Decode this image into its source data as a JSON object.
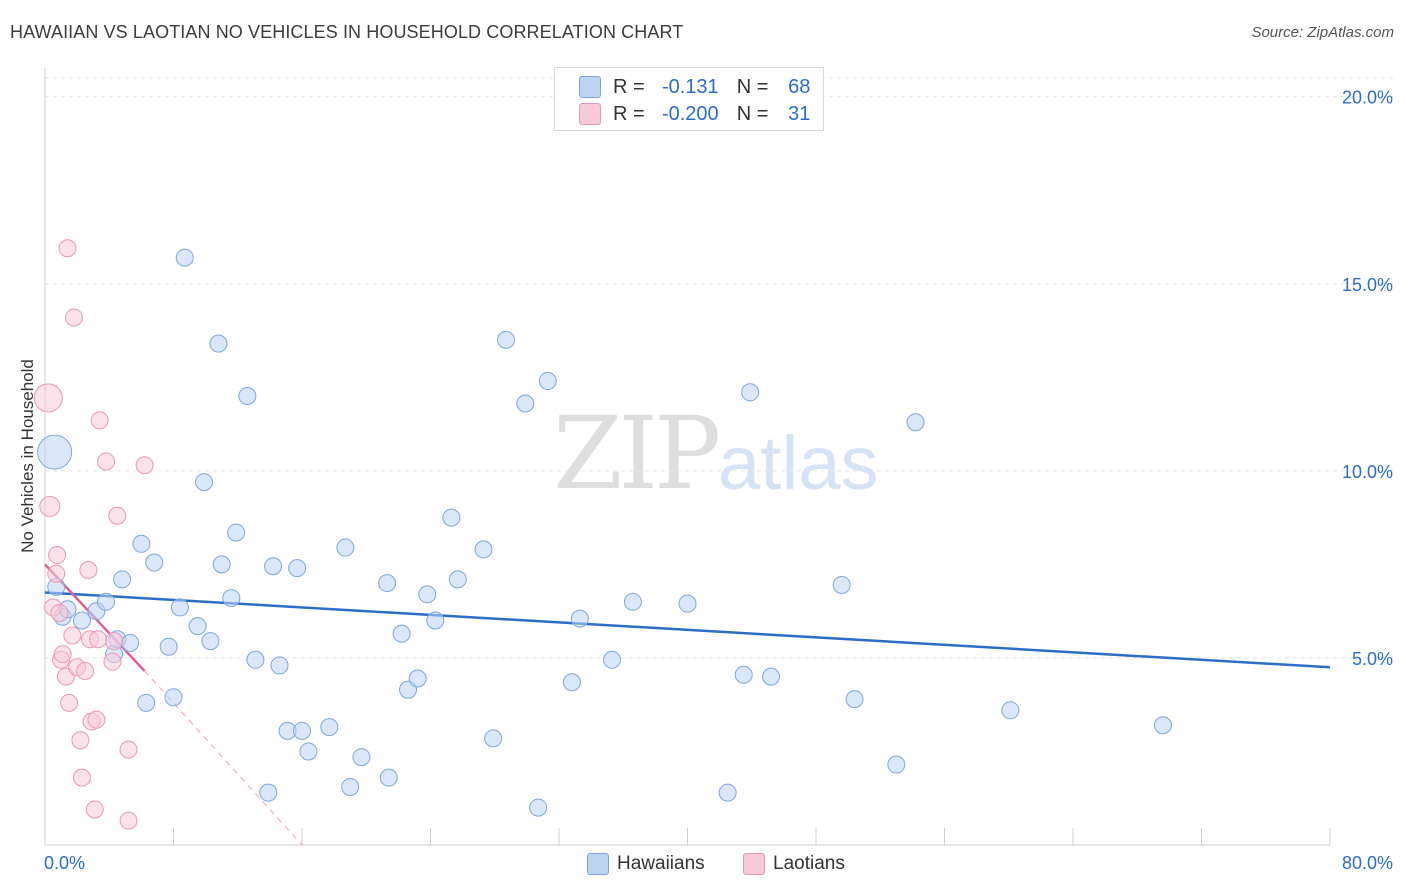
{
  "title": "HAWAIIAN VS LAOTIAN NO VEHICLES IN HOUSEHOLD CORRELATION CHART",
  "source": "Source: ZipAtlas.com",
  "watermark": {
    "zip": "ZIP",
    "atlas": "atlas"
  },
  "legend": {
    "r_label": "R =",
    "n_label": "N =",
    "rows": [
      {
        "r": "-0.131",
        "n": "68",
        "color": "#bcd3f2"
      },
      {
        "r": "-0.200",
        "n": "31",
        "color": "#f8c9d7"
      }
    ]
  },
  "bottom_legend": {
    "hawaiians": "Hawaiians",
    "laotians": "Laotians"
  },
  "chart_data": {
    "type": "scatter",
    "title": "HAWAIIAN VS LAOTIAN NO VEHICLES IN HOUSEHOLD CORRELATION CHART",
    "xlabel": "",
    "ylabel": "No Vehicles in Household",
    "xlim": [
      0,
      80
    ],
    "ylim": [
      0,
      20.5
    ],
    "x_tick_labels": [
      "0.0%",
      "80.0%"
    ],
    "y_ticks": [
      5,
      10,
      15,
      20
    ],
    "y_tick_labels": [
      "5.0%",
      "10.0%",
      "15.0%",
      "20.0%"
    ],
    "series": [
      {
        "name": "Hawaiians",
        "color": "#8fb4e6",
        "line_color": "#2c6dc7",
        "trend": {
          "x": [
            0,
            80
          ],
          "y": [
            6.75,
            4.75
          ]
        },
        "points": [
          [
            0.6,
            10.5
          ],
          [
            0.7,
            6.9
          ],
          [
            1.1,
            6.1
          ],
          [
            1.4,
            6.3
          ],
          [
            2.3,
            6.0
          ],
          [
            3.2,
            6.25
          ],
          [
            3.8,
            6.5
          ],
          [
            4.3,
            5.1
          ],
          [
            4.5,
            5.5
          ],
          [
            4.8,
            7.1
          ],
          [
            5.3,
            5.4
          ],
          [
            6.0,
            8.05
          ],
          [
            6.3,
            3.8
          ],
          [
            6.8,
            7.55
          ],
          [
            7.7,
            5.3
          ],
          [
            8.0,
            3.95
          ],
          [
            8.4,
            6.35
          ],
          [
            8.7,
            15.7
          ],
          [
            9.5,
            5.85
          ],
          [
            9.9,
            9.7
          ],
          [
            10.3,
            5.45
          ],
          [
            10.8,
            13.4
          ],
          [
            11.0,
            7.5
          ],
          [
            11.6,
            6.6
          ],
          [
            11.9,
            8.35
          ],
          [
            12.6,
            12.0
          ],
          [
            13.1,
            4.95
          ],
          [
            13.9,
            1.4
          ],
          [
            14.2,
            7.45
          ],
          [
            14.6,
            4.8
          ],
          [
            15.1,
            3.05
          ],
          [
            15.7,
            7.4
          ],
          [
            16.0,
            3.05
          ],
          [
            16.4,
            2.5
          ],
          [
            17.7,
            3.15
          ],
          [
            18.7,
            7.95
          ],
          [
            19.0,
            1.55
          ],
          [
            19.7,
            2.35
          ],
          [
            21.3,
            7.0
          ],
          [
            21.4,
            1.8
          ],
          [
            22.2,
            5.65
          ],
          [
            22.6,
            4.15
          ],
          [
            23.2,
            4.45
          ],
          [
            23.8,
            6.7
          ],
          [
            24.3,
            6.0
          ],
          [
            25.3,
            8.75
          ],
          [
            25.7,
            7.1
          ],
          [
            27.3,
            7.9
          ],
          [
            27.9,
            2.85
          ],
          [
            28.7,
            13.5
          ],
          [
            29.9,
            11.8
          ],
          [
            30.7,
            1.0
          ],
          [
            31.3,
            12.4
          ],
          [
            32.8,
            4.35
          ],
          [
            33.3,
            6.05
          ],
          [
            35.3,
            4.95
          ],
          [
            36.6,
            6.5
          ],
          [
            40.0,
            6.45
          ],
          [
            42.5,
            1.4
          ],
          [
            43.5,
            4.55
          ],
          [
            43.9,
            12.1
          ],
          [
            45.2,
            4.5
          ],
          [
            49.6,
            6.95
          ],
          [
            50.4,
            3.9
          ],
          [
            53.0,
            2.15
          ],
          [
            54.2,
            11.3
          ],
          [
            60.1,
            3.6
          ],
          [
            69.6,
            3.2
          ]
        ]
      },
      {
        "name": "Laotians",
        "color": "#f3a3bd",
        "line_color": "#e0609a",
        "trend": {
          "x": [
            0,
            6.2
          ],
          "y": [
            7.5,
            4.65
          ]
        },
        "trend_extension": {
          "x": [
            6.2,
            16.0
          ],
          "y": [
            4.65,
            0.0
          ]
        },
        "points": [
          [
            0.2,
            11.95
          ],
          [
            0.3,
            9.05
          ],
          [
            0.5,
            6.35
          ],
          [
            0.7,
            7.25
          ],
          [
            0.75,
            7.75
          ],
          [
            0.9,
            6.2
          ],
          [
            1.0,
            4.95
          ],
          [
            1.1,
            5.1
          ],
          [
            1.3,
            4.5
          ],
          [
            1.4,
            15.95
          ],
          [
            1.5,
            3.8
          ],
          [
            1.7,
            5.6
          ],
          [
            1.8,
            14.1
          ],
          [
            2.0,
            4.75
          ],
          [
            2.2,
            2.8
          ],
          [
            2.3,
            1.8
          ],
          [
            2.5,
            4.65
          ],
          [
            2.7,
            7.35
          ],
          [
            2.8,
            5.5
          ],
          [
            2.9,
            3.3
          ],
          [
            3.1,
            0.95
          ],
          [
            3.2,
            3.35
          ],
          [
            3.4,
            11.35
          ],
          [
            3.8,
            10.25
          ],
          [
            4.2,
            4.9
          ],
          [
            4.3,
            5.45
          ],
          [
            4.5,
            8.8
          ],
          [
            5.2,
            2.55
          ],
          [
            5.2,
            0.65
          ],
          [
            6.2,
            10.15
          ],
          [
            3.3,
            5.5
          ]
        ]
      }
    ]
  }
}
